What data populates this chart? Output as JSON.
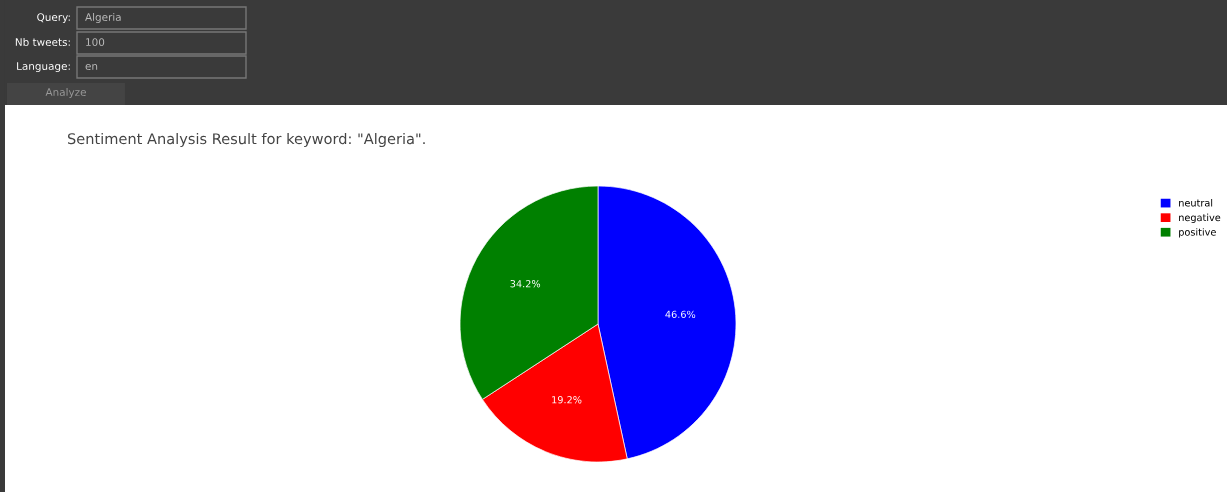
{
  "chart_data": {
    "type": "pie",
    "title": "Sentiment Analysis Result for keyword: \"Algeria\".",
    "categories": [
      "neutral",
      "negative",
      "positive"
    ],
    "values": [
      46.6,
      19.2,
      34.2
    ],
    "colors": [
      "#0000ff",
      "#ff0000",
      "#008000"
    ],
    "value_labels": [
      "46.6%",
      "19.2%",
      "34.2%"
    ],
    "legend": "top right",
    "annotations": [
      "Query:",
      "Algeria",
      "Nb tweets:",
      "100",
      "Language:",
      "en",
      "Analyze"
    ]
  }
}
